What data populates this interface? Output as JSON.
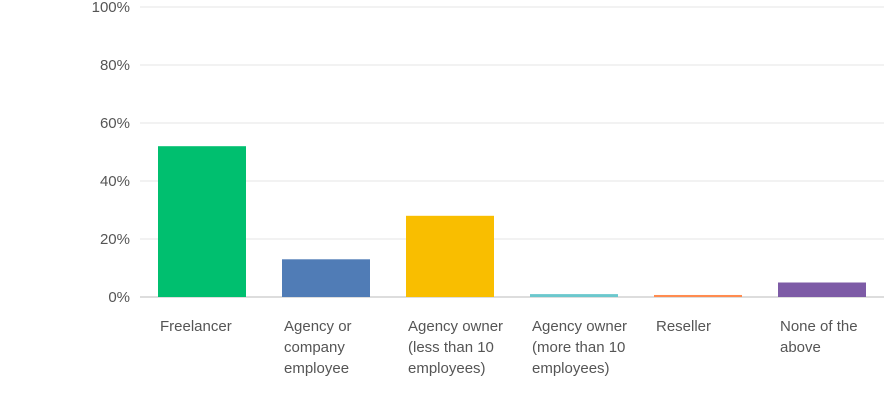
{
  "chart_data": {
    "type": "bar",
    "categories": [
      "Freelancer",
      "Agency or company employee",
      "Agency owner (less than 10 employees)",
      "Agency owner (more than 10 employees)",
      "Reseller",
      "None of the above"
    ],
    "values": [
      52,
      13,
      28,
      1,
      0.7,
      5
    ],
    "colors": [
      "#00bf6f",
      "#507cb6",
      "#f9be00",
      "#6bc8cd",
      "#ff8b4f",
      "#7d5ba6"
    ],
    "ylim": [
      0,
      100
    ],
    "yticks": [
      {
        "value": 0,
        "label": "0%"
      },
      {
        "value": 20,
        "label": "20%"
      },
      {
        "value": 40,
        "label": "40%"
      },
      {
        "value": 60,
        "label": "60%"
      },
      {
        "value": 80,
        "label": "80%"
      },
      {
        "value": 100,
        "label": "100%"
      }
    ],
    "grid": true
  }
}
